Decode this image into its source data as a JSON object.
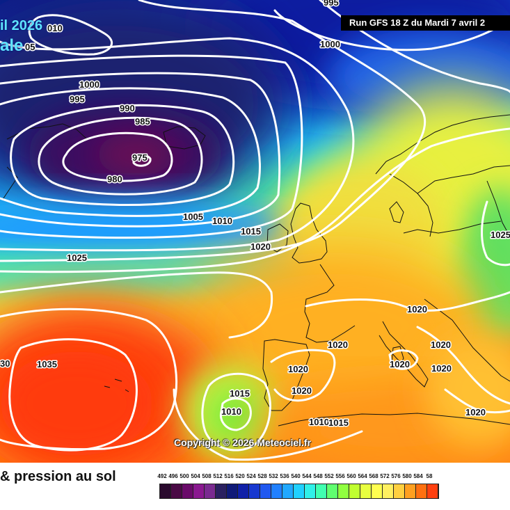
{
  "header": {
    "run_title": "Run GFS 18 Z du Mardi 7 avril 2",
    "date_fragment": "il 2026",
    "variable_fragment": "ale"
  },
  "copyright": "Copyright © 2026 Meteociel.fr",
  "legend": {
    "title": "& pression au sol",
    "scale_values": [
      492,
      496,
      500,
      504,
      508,
      512,
      516,
      520,
      524,
      528,
      532,
      536,
      540,
      544,
      548,
      552,
      556,
      560,
      564,
      568,
      572,
      576,
      580,
      584,
      58
    ],
    "scale_colors": [
      "#2a0a2e",
      "#4a0a45",
      "#6a0a6a",
      "#8a1890",
      "#7a2a90",
      "#2a2060",
      "#101a78",
      "#1020a8",
      "#1838d0",
      "#2058f0",
      "#2080ff",
      "#20a8ff",
      "#20d0ff",
      "#30f0e8",
      "#40ffb0",
      "#60ff70",
      "#90ff40",
      "#c0ff30",
      "#e8ff40",
      "#ffff50",
      "#fff060",
      "#ffd040",
      "#ffa020",
      "#ff7010",
      "#ff4010"
    ]
  },
  "isobar_labels": [
    {
      "text": "010"
    },
    {
      "text": "05"
    },
    {
      "text": "1000"
    },
    {
      "text": "1000"
    },
    {
      "text": "995"
    },
    {
      "text": "990"
    },
    {
      "text": "985"
    },
    {
      "text": "975"
    },
    {
      "text": "980"
    },
    {
      "text": "1005"
    },
    {
      "text": "1010"
    },
    {
      "text": "1015"
    },
    {
      "text": "1020"
    },
    {
      "text": "1025"
    },
    {
      "text": "1025"
    },
    {
      "text": "30"
    },
    {
      "text": "1035"
    },
    {
      "text": "1020"
    },
    {
      "text": "1020"
    },
    {
      "text": "1020"
    },
    {
      "text": "1020"
    },
    {
      "text": "1020"
    },
    {
      "text": "1020"
    },
    {
      "text": "1020"
    },
    {
      "text": "1015"
    },
    {
      "text": "1010"
    },
    {
      "text": "1010"
    },
    {
      "text": "1015"
    },
    {
      "text": "1020"
    },
    {
      "text": "995"
    }
  ]
}
